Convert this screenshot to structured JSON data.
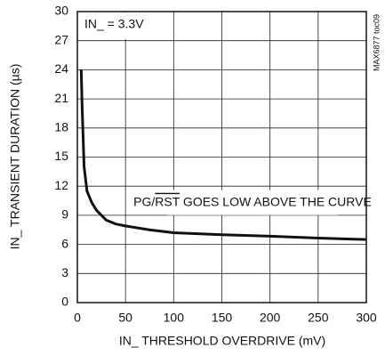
{
  "chart_data": {
    "type": "line",
    "y_label": "IN_ TRANSIENT DURATION (µs)",
    "x_label": "IN_ THRESHOLD OVERDRIVE (mV)",
    "condition": "IN_ = 3.3V",
    "annotation": [
      {
        "text": "PG/"
      },
      {
        "text": "RST",
        "overline": true
      },
      {
        "text": " GOES LOW ABOVE THE CURVE"
      }
    ],
    "figure_id": "MAX6877 toc09",
    "x": [
      4,
      5,
      7,
      10,
      15,
      20,
      30,
      40,
      50,
      75,
      100,
      150,
      200,
      250,
      300
    ],
    "series": [
      {
        "name": "IN_ = 3.3V",
        "color": "#111111",
        "values": [
          24,
          20,
          14,
          11.5,
          10.3,
          9.5,
          8.5,
          8.1,
          7.9,
          7.5,
          7.2,
          7.0,
          6.85,
          6.65,
          6.5
        ]
      }
    ],
    "xlim": [
      0,
      300
    ],
    "xticks": [
      0,
      50,
      100,
      150,
      200,
      250,
      300
    ],
    "ylim": [
      0,
      30
    ],
    "yticks": [
      0,
      3,
      6,
      9,
      12,
      15,
      18,
      21,
      24,
      27,
      30
    ],
    "grid": true
  }
}
